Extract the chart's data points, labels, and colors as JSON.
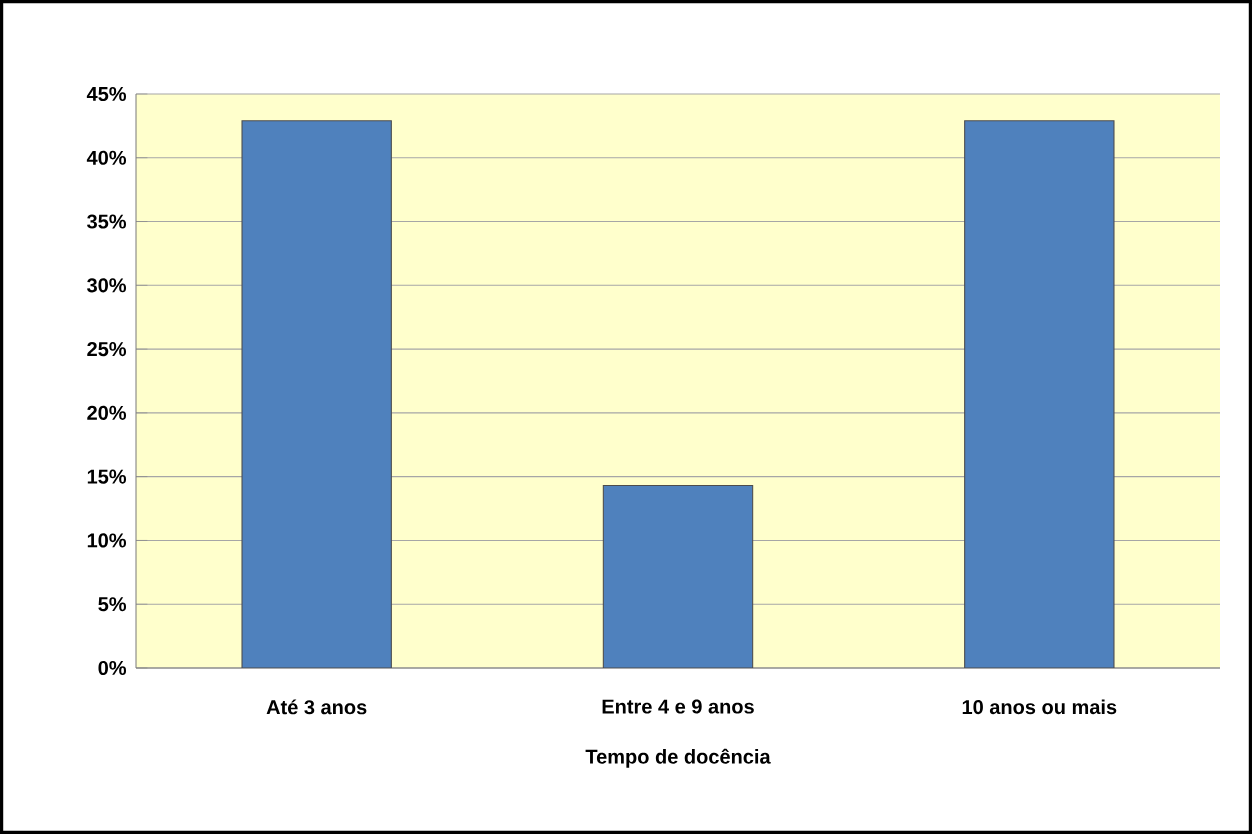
{
  "chart_data": {
    "type": "bar",
    "xlabel": "Tempo de docência",
    "categories": [
      "Até 3 anos",
      "Entre 4 e 9 anos",
      "10  anos ou mais"
    ],
    "values": [
      42.9,
      14.3,
      42.9
    ],
    "color": "#4f81bd",
    "ylim": [
      0,
      45
    ],
    "yticks": [
      {
        "value": 0,
        "label": "0%"
      },
      {
        "value": 5,
        "label": "5%"
      },
      {
        "value": 10,
        "label": "10%"
      },
      {
        "value": 15,
        "label": "15%"
      },
      {
        "value": 20,
        "label": "20%"
      },
      {
        "value": 25,
        "label": "25%"
      },
      {
        "value": 30,
        "label": "30%"
      },
      {
        "value": 35,
        "label": "35%"
      },
      {
        "value": 40,
        "label": "40%"
      },
      {
        "value": 45,
        "label": "45%"
      }
    ],
    "grid": "y"
  }
}
